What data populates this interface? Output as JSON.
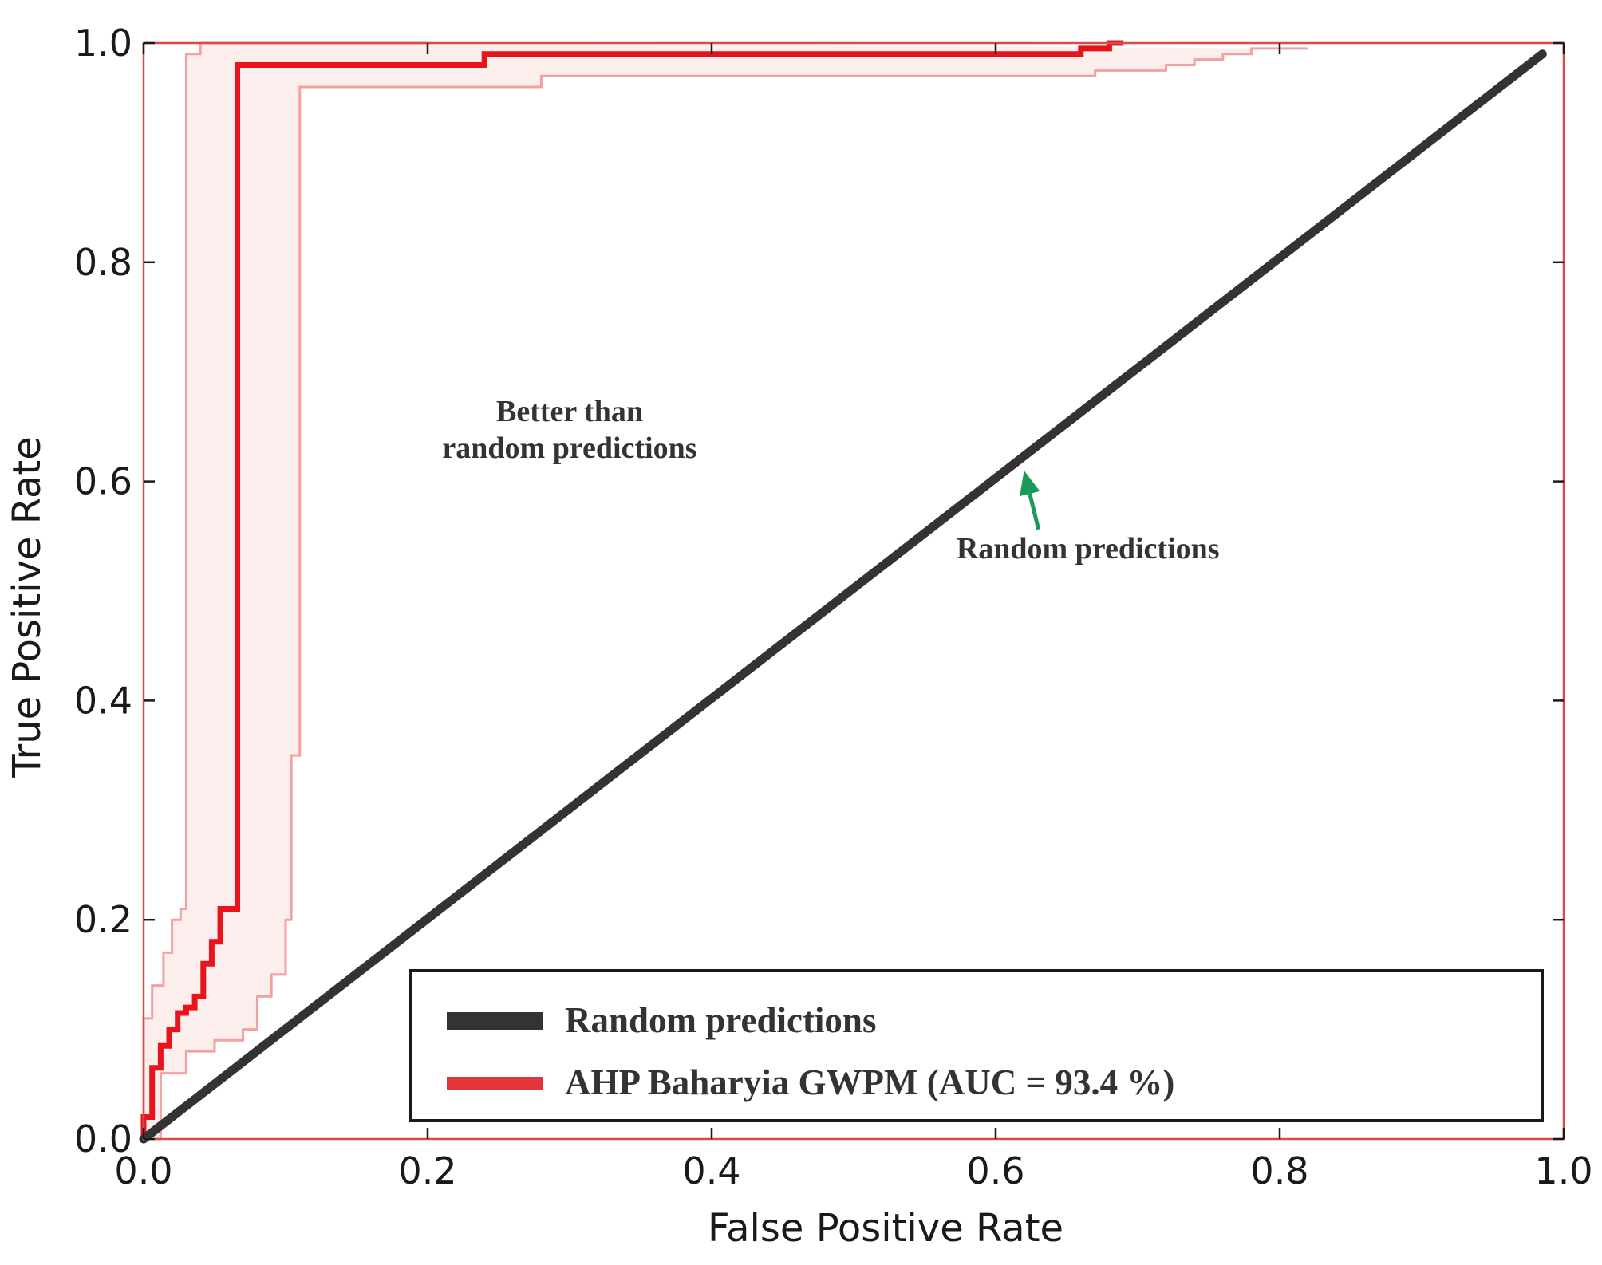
{
  "chart_data": {
    "type": "line",
    "xlabel": "False Positive Rate",
    "ylabel": "True Positive Rate",
    "xlim": [
      0.0,
      1.0
    ],
    "ylim": [
      0.0,
      1.0
    ],
    "x_ticks": [
      "0.0",
      "0.2",
      "0.4",
      "0.6",
      "0.8",
      "1.0"
    ],
    "y_ticks": [
      "0.0",
      "0.2",
      "0.4",
      "0.6",
      "0.8",
      "1.0"
    ],
    "grid": false,
    "legend_position": "bottom-right",
    "colors": {
      "axes_frame": "#d94a4a",
      "random": "#333333",
      "roc": "#e8141c",
      "band": "#f4a0a0",
      "legend_roc": "#e0353a",
      "arrow": "#1a9a5a"
    },
    "series": [
      {
        "name": "Random predictions",
        "x": [
          0.0,
          0.985
        ],
        "y": [
          0.0,
          0.99
        ]
      },
      {
        "name": "AHP Baharyia GWPM (AUC = 93.4 %)",
        "x": [
          0.0,
          0.0,
          0.006,
          0.006,
          0.012,
          0.012,
          0.018,
          0.018,
          0.024,
          0.024,
          0.03,
          0.03,
          0.036,
          0.036,
          0.042,
          0.042,
          0.048,
          0.048,
          0.054,
          0.054,
          0.06,
          0.06,
          0.066,
          0.066,
          0.24,
          0.24,
          0.66,
          0.66,
          0.68,
          0.68,
          0.69
        ],
        "y": [
          0.0,
          0.02,
          0.02,
          0.065,
          0.065,
          0.085,
          0.085,
          0.1,
          0.1,
          0.115,
          0.115,
          0.12,
          0.12,
          0.13,
          0.13,
          0.16,
          0.16,
          0.18,
          0.18,
          0.21,
          0.21,
          0.21,
          0.21,
          0.98,
          0.98,
          0.99,
          0.99,
          0.995,
          0.995,
          1.0,
          1.0
        ]
      }
    ],
    "band_upper": {
      "x": [
        0.0,
        0.0,
        0.006,
        0.006,
        0.014,
        0.014,
        0.02,
        0.02,
        0.026,
        0.026,
        0.03,
        0.03,
        0.04,
        0.04,
        0.2
      ],
      "y": [
        0.0,
        0.11,
        0.11,
        0.14,
        0.14,
        0.17,
        0.17,
        0.2,
        0.2,
        0.21,
        0.21,
        0.99,
        0.99,
        1.0,
        1.0
      ]
    },
    "band_lower": {
      "x": [
        0.0,
        0.012,
        0.012,
        0.03,
        0.03,
        0.05,
        0.05,
        0.07,
        0.07,
        0.08,
        0.08,
        0.09,
        0.09,
        0.1,
        0.1,
        0.104,
        0.104,
        0.11,
        0.11,
        0.114,
        0.114,
        0.28,
        0.28,
        0.67,
        0.67,
        0.72,
        0.72,
        0.74,
        0.74,
        0.76,
        0.76,
        0.78,
        0.78,
        0.82
      ],
      "y": [
        0.0,
        0.0,
        0.06,
        0.06,
        0.08,
        0.08,
        0.09,
        0.09,
        0.1,
        0.1,
        0.13,
        0.13,
        0.15,
        0.15,
        0.2,
        0.2,
        0.35,
        0.35,
        0.96,
        0.96,
        0.96,
        0.96,
        0.97,
        0.97,
        0.975,
        0.975,
        0.98,
        0.98,
        0.985,
        0.985,
        0.99,
        0.99,
        0.995,
        0.995
      ]
    },
    "annotations": [
      {
        "lines": [
          "Better than",
          "random predictions"
        ],
        "x": 0.3,
        "y": 0.655
      },
      {
        "lines": [
          "Random predictions"
        ],
        "x": 0.665,
        "y": 0.53,
        "arrow_to": [
          0.62,
          0.61
        ]
      }
    ]
  }
}
